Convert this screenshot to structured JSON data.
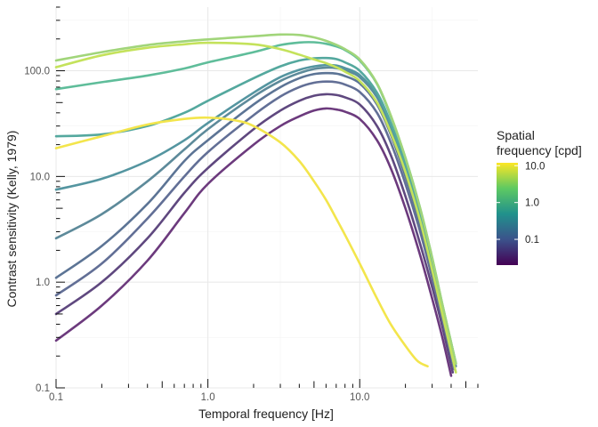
{
  "chart_data": {
    "type": "line",
    "title": "",
    "xlabel": "Temporal frequency [Hz]",
    "ylabel": "Contrast sensitivity (Kelly, 1979)",
    "xscale": "log10",
    "yscale": "log10",
    "xlim": [
      0.1,
      60
    ],
    "ylim": [
      0.1,
      400
    ],
    "xticks": [
      "0.1",
      "1.0",
      "10.0"
    ],
    "yticks": [
      "0.1",
      "1.0",
      "10.0",
      "100.0"
    ],
    "grid": true,
    "legend": {
      "title": "Spatial\nfrequency [cpd]",
      "type": "colorbar",
      "placement": "right",
      "labels": [
        "10.0",
        "1.0",
        "0.1"
      ],
      "colors": [
        "#fde725",
        "#5ec962",
        "#21918c",
        "#3b528b",
        "#440154"
      ]
    },
    "series": [
      {
        "color": "#6c3a7d",
        "x": [
          0.1,
          0.2,
          0.4,
          0.7,
          1.0,
          2.0,
          3.0,
          4.0,
          5.0,
          6.0,
          7.0,
          8.0,
          10.0,
          13.0,
          16.0,
          20.0,
          25.0,
          30.0,
          35.0,
          40.0
        ],
        "y": [
          0.28,
          0.6,
          1.6,
          4.5,
          8.5,
          20,
          30,
          37,
          42,
          44,
          43,
          41,
          35,
          22,
          12,
          5,
          1.8,
          0.7,
          0.3,
          0.13
        ]
      },
      {
        "color": "#5f487f",
        "x": [
          0.1,
          0.2,
          0.4,
          0.7,
          1.0,
          2.0,
          3.0,
          4.0,
          5.0,
          6.0,
          7.0,
          8.0,
          10.0,
          13.0,
          16.0,
          20.0,
          25.0,
          30.0,
          35.0,
          41.0
        ],
        "y": [
          0.5,
          1.0,
          2.6,
          7,
          12,
          28,
          42,
          52,
          58,
          60,
          59,
          56,
          48,
          30,
          16,
          6.5,
          2.3,
          0.9,
          0.38,
          0.14
        ]
      },
      {
        "color": "#626f96",
        "x": [
          0.1,
          0.2,
          0.4,
          0.7,
          1.0,
          2.0,
          3.0,
          4.0,
          5.0,
          6.0,
          7.0,
          8.0,
          10.0,
          13.0,
          16.0,
          20.0,
          25.0,
          30.0,
          35.0,
          42.0
        ],
        "y": [
          0.75,
          1.5,
          4.0,
          10,
          17,
          38,
          57,
          70,
          77,
          79,
          78,
          74,
          63,
          40,
          21,
          8.5,
          3,
          1.1,
          0.45,
          0.15
        ]
      },
      {
        "color": "#5c7495",
        "x": [
          0.1,
          0.2,
          0.4,
          0.7,
          1.0,
          2.0,
          3.0,
          4.0,
          5.0,
          6.0,
          7.0,
          8.0,
          10.0,
          13.0,
          16.0,
          20.0,
          25.0,
          30.0,
          35.0,
          42.0
        ],
        "y": [
          1.1,
          2.2,
          5.5,
          14,
          22,
          48,
          70,
          85,
          93,
          95,
          94,
          89,
          76,
          48,
          25,
          10,
          3.5,
          1.3,
          0.5,
          0.16
        ]
      },
      {
        "color": "#5d8a9a",
        "x": [
          0.1,
          0.2,
          0.4,
          0.7,
          1.0,
          2.0,
          3.0,
          4.0,
          5.0,
          6.0,
          7.0,
          8.0,
          10.0,
          13.0,
          16.0,
          20.0,
          25.0,
          30.0,
          35.0,
          43.0
        ],
        "y": [
          2.6,
          4.4,
          9,
          18,
          28,
          57,
          80,
          95,
          104,
          107,
          106,
          101,
          87,
          56,
          29,
          12,
          4,
          1.4,
          0.55,
          0.16
        ]
      },
      {
        "color": "#5495a0",
        "x": [
          0.1,
          0.2,
          0.4,
          0.7,
          1.0,
          2.0,
          3.0,
          4.0,
          5.0,
          6.0,
          7.0,
          8.0,
          10.0,
          13.0,
          16.0,
          20.0,
          25.0,
          30.0,
          35.0,
          43.0
        ],
        "y": [
          7.5,
          9.5,
          14,
          22,
          32,
          62,
          87,
          102,
          110,
          113,
          112,
          106,
          91,
          58,
          30,
          12,
          4.2,
          1.5,
          0.6,
          0.17
        ]
      },
      {
        "color": "#54a89e",
        "x": [
          0.1,
          0.2,
          0.4,
          0.7,
          1.0,
          2.0,
          3.0,
          4.0,
          5.0,
          6.0,
          7.0,
          8.0,
          10.0,
          13.0,
          16.0,
          20.0,
          25.0,
          30.0,
          35.0,
          43.0
        ],
        "y": [
          24,
          25,
          30,
          40,
          52,
          85,
          110,
          125,
          131,
          132,
          129,
          120,
          100,
          62,
          32,
          13,
          4.5,
          1.6,
          0.6,
          0.17
        ]
      },
      {
        "color": "#5fbd9a",
        "x": [
          0.1,
          0.2,
          0.4,
          0.7,
          1.0,
          2.0,
          3.0,
          4.0,
          5.0,
          6.0,
          7.0,
          8.0,
          10.0,
          13.0,
          16.0,
          20.0,
          25.0,
          30.0,
          35.0,
          43.0
        ],
        "y": [
          67,
          78,
          90,
          105,
          120,
          150,
          175,
          185,
          186,
          180,
          170,
          157,
          125,
          75,
          37,
          15,
          5,
          1.7,
          0.62,
          0.17
        ]
      },
      {
        "color": "#a1d57a",
        "x": [
          0.1,
          0.2,
          0.4,
          0.7,
          1.0,
          2.0,
          3.0,
          4.0,
          5.0,
          6.0,
          7.0,
          8.0,
          10.0,
          13.0,
          16.0,
          20.0,
          25.0,
          30.0,
          35.0,
          43.0
        ],
        "y": [
          125,
          150,
          175,
          190,
          198,
          212,
          220,
          218,
          207,
          192,
          176,
          160,
          128,
          76,
          38,
          15,
          5,
          1.7,
          0.62,
          0.17
        ]
      },
      {
        "color": "#c4e25b",
        "x": [
          0.1,
          0.2,
          0.4,
          0.7,
          1.0,
          2.0,
          3.0,
          4.0,
          5.0,
          6.0,
          7.0,
          8.0,
          10.0,
          13.0,
          16.0,
          20.0,
          25.0,
          30.0,
          35.0,
          43.0
        ],
        "y": [
          108,
          140,
          165,
          178,
          184,
          178,
          160,
          142,
          128,
          118,
          108,
          98,
          80,
          50,
          26,
          11,
          3.8,
          1.3,
          0.5,
          0.14
        ]
      },
      {
        "color": "#f3e54c",
        "x": [
          0.1,
          0.2,
          0.4,
          0.7,
          1.0,
          1.5,
          2.0,
          3.0,
          4.0,
          5.0,
          6.0,
          7.0,
          8.0,
          10.0,
          13.0,
          16.0,
          20.0,
          24.0,
          28.0
        ],
        "y": [
          18.5,
          24,
          31,
          35,
          36,
          34,
          30,
          21,
          14,
          9,
          6,
          4,
          2.8,
          1.5,
          0.7,
          0.4,
          0.25,
          0.18,
          0.16
        ]
      }
    ]
  }
}
